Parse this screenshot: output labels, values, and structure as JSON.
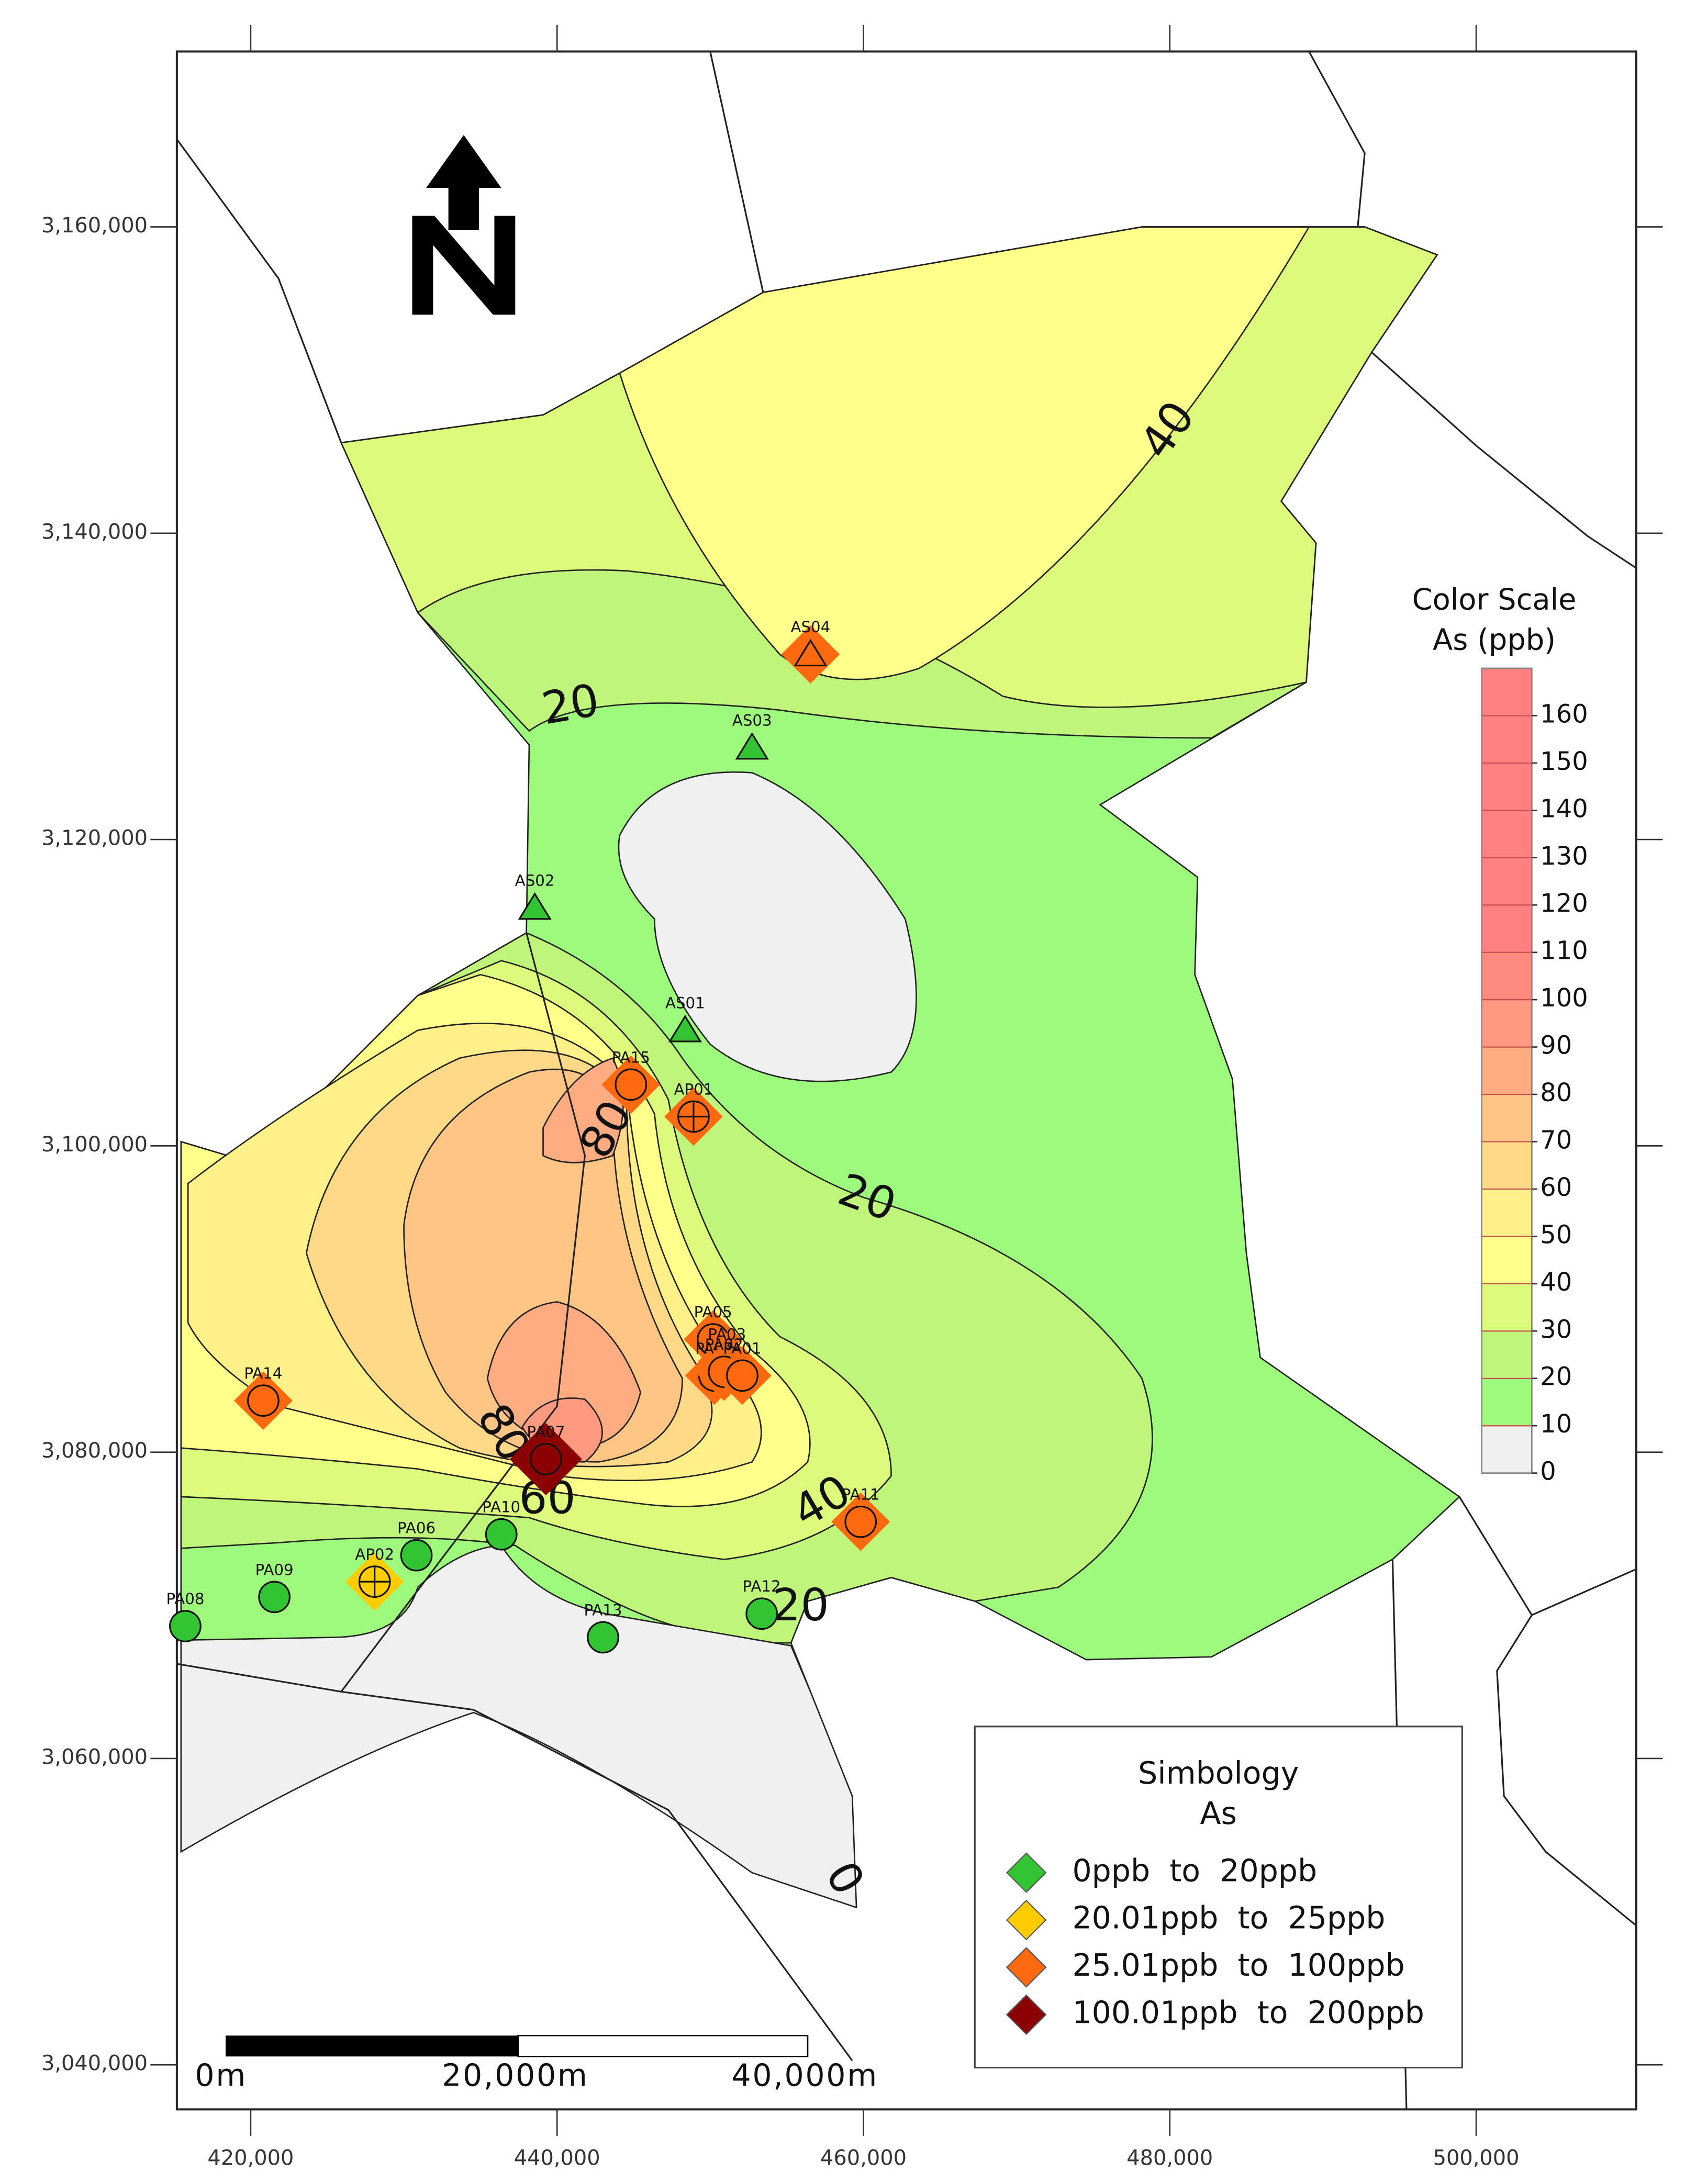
{
  "map": {
    "xlim": [
      415180,
      510450
    ],
    "ylim": [
      3037090,
      3171450
    ],
    "xticks": [
      {
        "value": 420000,
        "label": "420,000"
      },
      {
        "value": 440000,
        "label": "440,000"
      },
      {
        "value": 460000,
        "label": "460,000"
      },
      {
        "value": 480000,
        "label": "480,000"
      },
      {
        "value": 500000,
        "label": "500,000"
      }
    ],
    "yticks": [
      {
        "value": 3040000,
        "label": "3,040,000"
      },
      {
        "value": 3060000,
        "label": "3,060,000"
      },
      {
        "value": 3080000,
        "label": "3,080,000"
      },
      {
        "value": 3100000,
        "label": "3,100,000"
      },
      {
        "value": 3120000,
        "label": "3,120,000"
      },
      {
        "value": 3140000,
        "label": "3,140,000"
      },
      {
        "value": 3160000,
        "label": "3,160,000"
      }
    ],
    "contour_labels": [
      40,
      20,
      80,
      20,
      80,
      60,
      40,
      20,
      0
    ],
    "color_scale": {
      "title": [
        "Color Scale",
        "As (ppb)"
      ],
      "ticks": [
        0,
        10,
        20,
        30,
        40,
        50,
        60,
        70,
        80,
        90,
        100,
        110,
        120,
        130,
        140,
        150,
        160
      ],
      "colors": [
        "#f0f0f0",
        "#9dfa7c",
        "#bff57a",
        "#dcfb7c",
        "#ffff8a",
        "#fff08a",
        "#ffd888",
        "#ffc585",
        "#ffac82",
        "#ff9a80",
        "#ff8a80",
        "#ff8080",
        "#ff8080",
        "#ff8080",
        "#ff8080",
        "#ff8080",
        "#ff8080"
      ]
    },
    "legend": {
      "title": [
        "Simbology",
        "As"
      ],
      "classes": [
        {
          "label": "0ppb  to  20ppb",
          "color": "#33c433"
        },
        {
          "label": "20.01ppb  to  25ppb",
          "color": "#ffcc00"
        },
        {
          "label": "25.01ppb  to  100ppb",
          "color": "#ff6a10"
        },
        {
          "label": "100.01ppb  to  200ppb",
          "color": "#8b0000"
        }
      ]
    },
    "scale_bar": [
      "0m",
      "20,000m",
      "40,000m"
    ],
    "stations": [
      {
        "name": "AS04",
        "x": 456545,
        "y": 3132090,
        "class": 2,
        "symbol": "triangle"
      },
      {
        "name": "AS03",
        "x": 452730,
        "y": 3126000,
        "class": 0,
        "symbol": "triangle"
      },
      {
        "name": "AS02",
        "x": 438545,
        "y": 3115545,
        "class": 0,
        "symbol": "triangle"
      },
      {
        "name": "AS01",
        "x": 448360,
        "y": 3107545,
        "class": 0,
        "symbol": "triangle"
      },
      {
        "name": "PA15",
        "x": 444820,
        "y": 3104000,
        "class": 2,
        "symbol": "circle"
      },
      {
        "name": "AP01",
        "x": 448910,
        "y": 3101910,
        "class": 2,
        "symbol": "cross"
      },
      {
        "name": "PA05",
        "x": 450180,
        "y": 3087365,
        "class": 2,
        "symbol": "circle"
      },
      {
        "name": "PA03",
        "x": 451090,
        "y": 3085910,
        "class": 2,
        "symbol": "circle"
      },
      {
        "name": "PA04",
        "x": 450270,
        "y": 3085000,
        "class": 2,
        "symbol": "circle"
      },
      {
        "name": "PA02",
        "x": 450900,
        "y": 3085250,
        "class": 2,
        "symbol": "circle"
      },
      {
        "name": "PA01",
        "x": 452090,
        "y": 3085000,
        "class": 2,
        "symbol": "circle"
      },
      {
        "name": "PA14",
        "x": 420820,
        "y": 3083365,
        "class": 2,
        "symbol": "circle"
      },
      {
        "name": "PA07",
        "x": 439270,
        "y": 3079545,
        "class": 3,
        "symbol": "circle"
      },
      {
        "name": "PA11",
        "x": 459820,
        "y": 3075455,
        "class": 2,
        "symbol": "circle"
      },
      {
        "name": "PA10",
        "x": 436360,
        "y": 3074636,
        "class": 0,
        "symbol": "circle"
      },
      {
        "name": "PA06",
        "x": 430820,
        "y": 3073270,
        "class": 0,
        "symbol": "circle"
      },
      {
        "name": "AP02",
        "x": 428090,
        "y": 3071545,
        "class": 1,
        "symbol": "cross"
      },
      {
        "name": "PA09",
        "x": 421545,
        "y": 3070545,
        "class": 0,
        "symbol": "circle"
      },
      {
        "name": "PA08",
        "x": 415730,
        "y": 3068640,
        "class": 0,
        "symbol": "circle"
      },
      {
        "name": "PA13",
        "x": 443000,
        "y": 3067910,
        "class": 0,
        "symbol": "circle"
      },
      {
        "name": "PA12",
        "x": 453360,
        "y": 3069455,
        "class": 0,
        "symbol": "circle"
      }
    ]
  }
}
